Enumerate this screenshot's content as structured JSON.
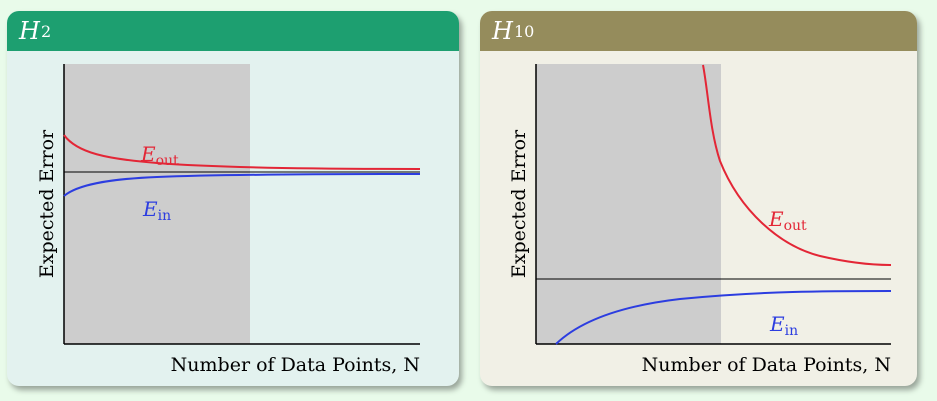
{
  "panels": [
    {
      "id": "h2",
      "title_symbol": "H",
      "title_subscript": "2",
      "header_color": "#1d9f70",
      "background_color": "#e3f2ef",
      "ylabel": "Expected Error",
      "xlabel": "Number of Data Points, N",
      "curves": {
        "out": {
          "symbol": "E",
          "subscript": "out",
          "color": "#e32636"
        },
        "in": {
          "symbol": "E",
          "subscript": "in",
          "color": "#2c3de0"
        }
      }
    },
    {
      "id": "h10",
      "title_symbol": "H",
      "title_subscript": "10",
      "header_color": "#958c5c",
      "background_color": "#f1f0e6",
      "ylabel": "Expected Error",
      "xlabel": "Number of Data Points, N",
      "curves": {
        "out": {
          "symbol": "E",
          "subscript": "out",
          "color": "#e32636"
        },
        "in": {
          "symbol": "E",
          "subscript": "in",
          "color": "#2c3de0"
        }
      }
    }
  ],
  "colors": {
    "shaded_region": "#cdcdcd",
    "asymptote": "#000000",
    "axis": "#000000"
  }
}
